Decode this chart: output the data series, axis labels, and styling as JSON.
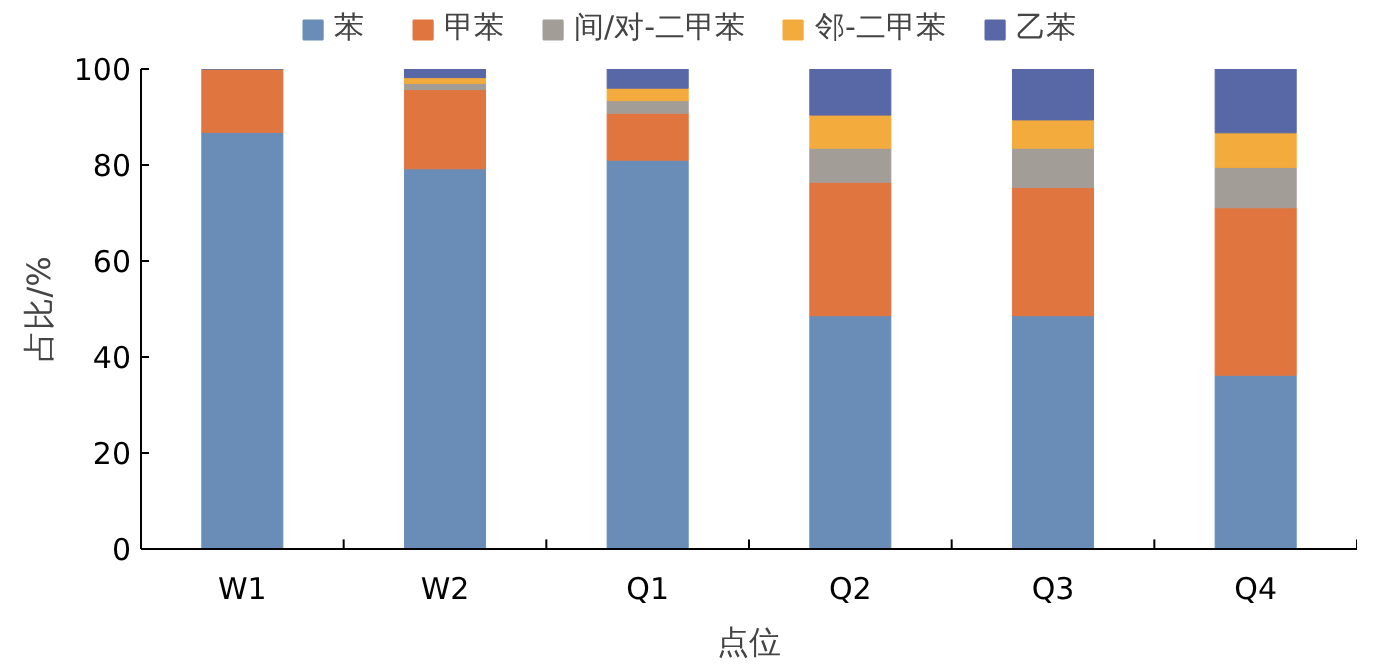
{
  "chart_data": {
    "type": "bar",
    "stacked": true,
    "xlabel": "点位",
    "ylabel": "占比/%",
    "categories": [
      "W1",
      "W2",
      "Q1",
      "Q2",
      "Q3",
      "Q4"
    ],
    "series": [
      {
        "name": "苯",
        "color": "#6a8db8",
        "values": [
          86.8,
          79.2,
          81,
          48.6,
          48.6,
          36.2
        ]
      },
      {
        "name": "甲苯",
        "color": "#e07540",
        "values": [
          13.2,
          16.5,
          9.8,
          27.8,
          26.7,
          34.9
        ]
      },
      {
        "name": "间/对-二甲苯",
        "color": "#a39d98",
        "values": [
          0,
          1.3,
          2.6,
          7.1,
          8.2,
          8.4
        ]
      },
      {
        "name": "邻-二甲苯",
        "color": "#f2ab3c",
        "values": [
          0,
          1.2,
          2.6,
          6.9,
          5.9,
          7.2
        ]
      },
      {
        "name": "乙苯",
        "color": "#5867a5",
        "values": [
          0,
          1.8,
          4,
          9.6,
          10.6,
          13.3
        ]
      }
    ],
    "ylim": [
      0,
      100
    ],
    "yticks": [
      0,
      20,
      40,
      60,
      80,
      100
    ],
    "grid": false,
    "legend": "top"
  }
}
